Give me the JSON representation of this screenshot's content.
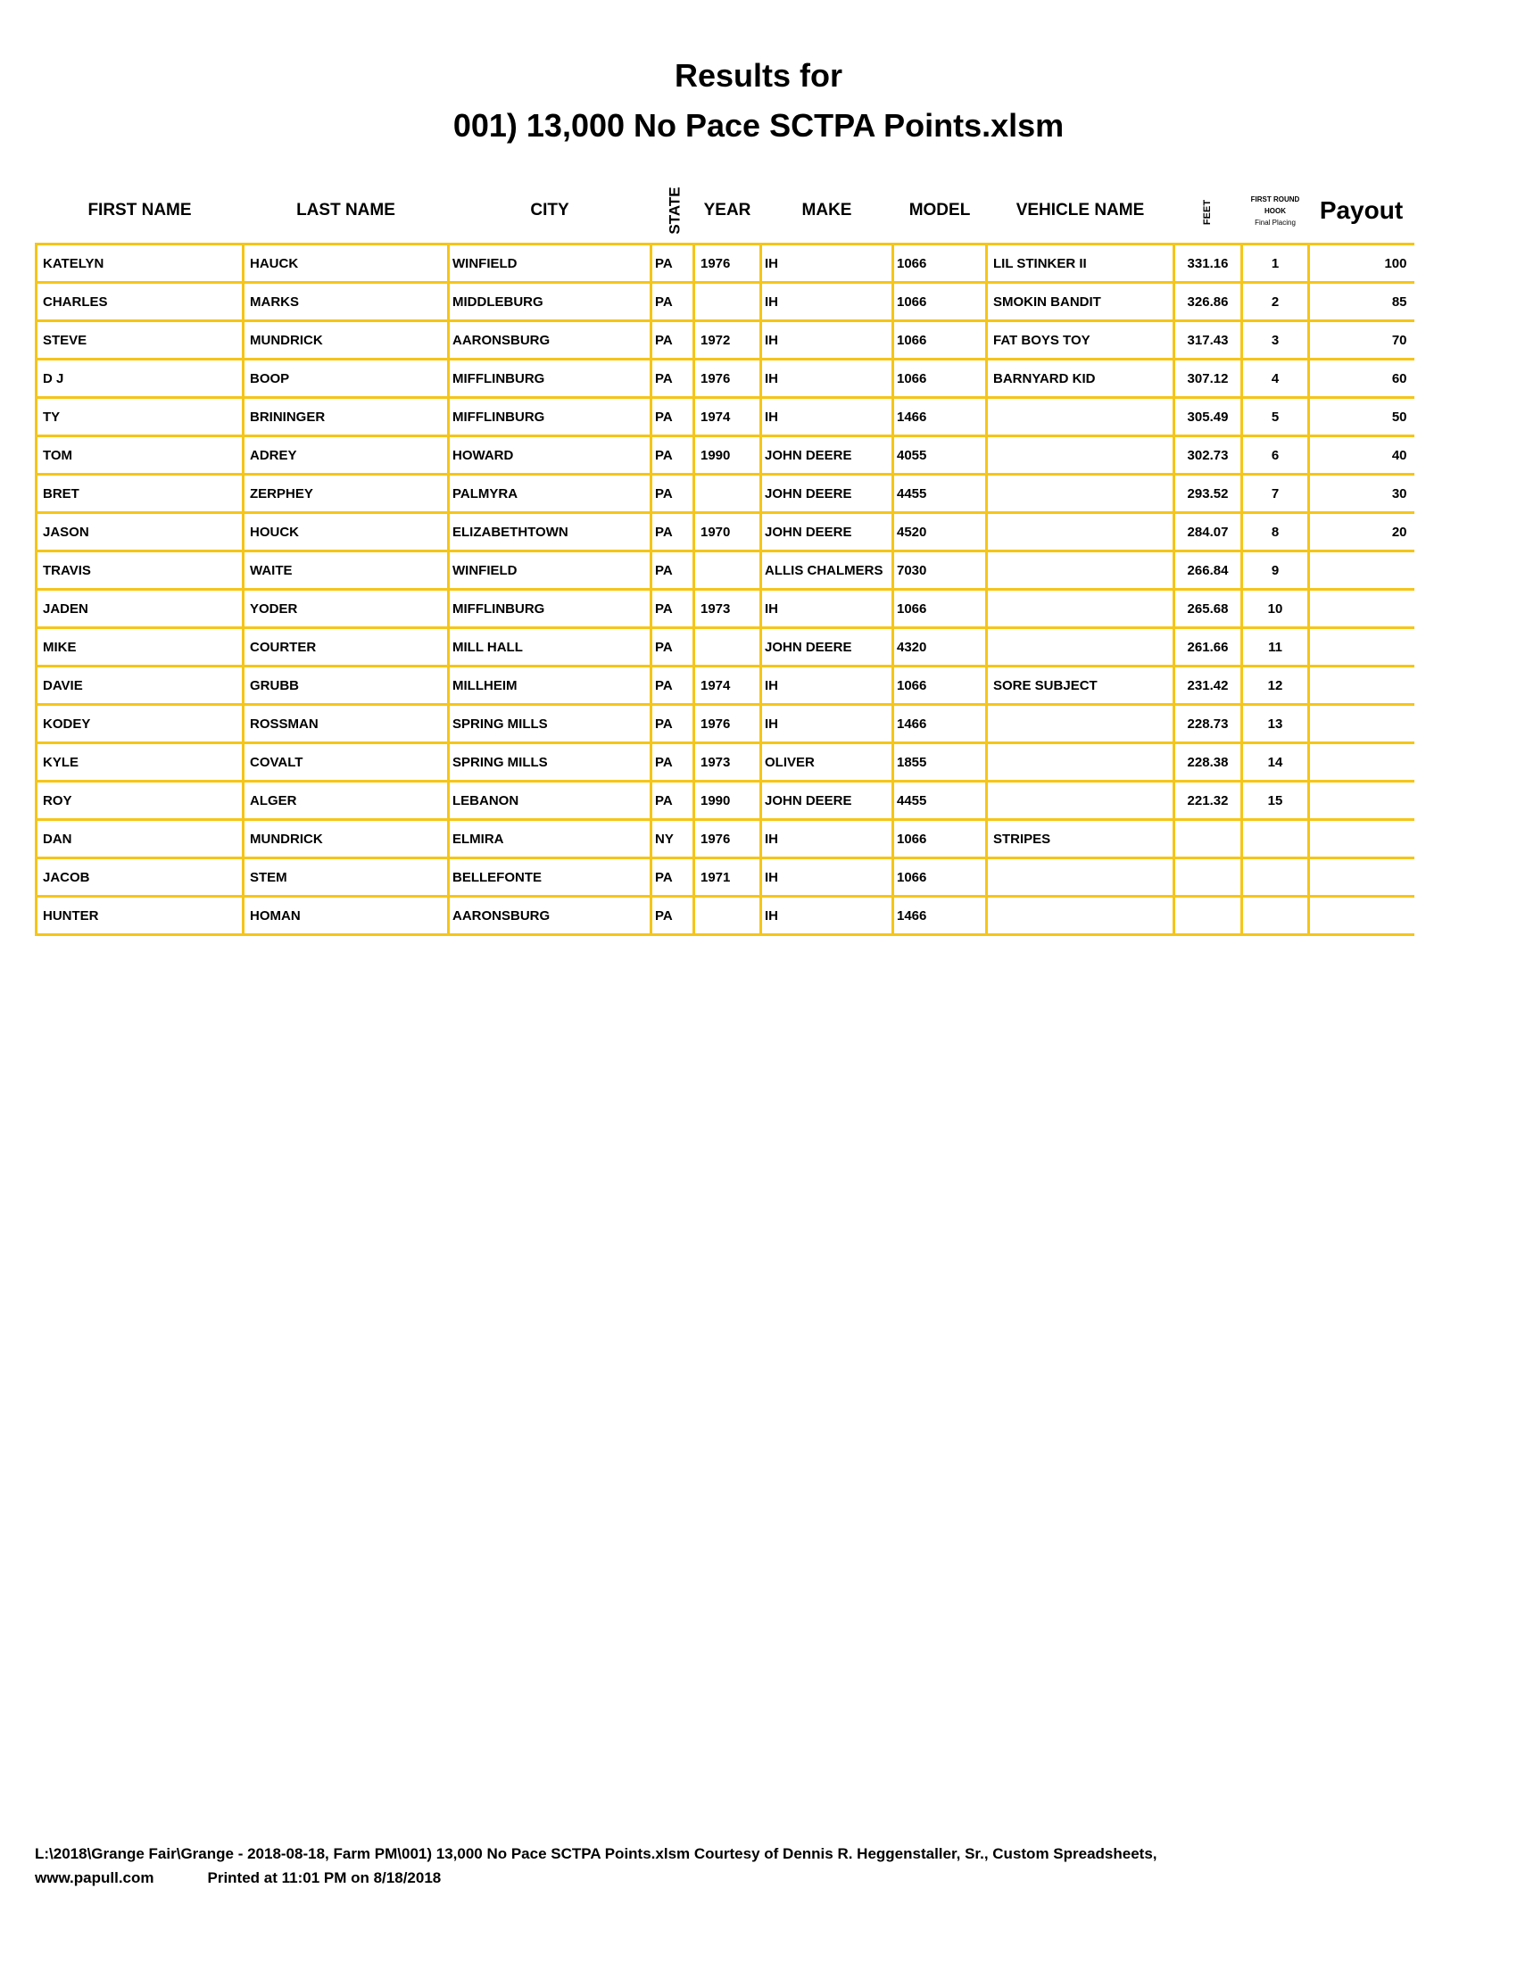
{
  "title_line1": "Results for",
  "title_line2": "001) 13,000 No Pace SCTPA Points.xlsm",
  "border_color": "#f5c518",
  "headers": {
    "first_name": "FIRST NAME",
    "last_name": "LAST NAME",
    "city": "CITY",
    "state": "STATE",
    "year": "YEAR",
    "make": "MAKE",
    "model": "MODEL",
    "vehicle_name": "VEHICLE NAME",
    "feet": "FEET",
    "hook_1": "FIRST ROUND",
    "hook_2": "HOOK",
    "hook_3": "Final Placing",
    "payout": "Payout"
  },
  "rows": [
    [
      "KATELYN",
      "HAUCK",
      "WINFIELD",
      "PA",
      "1976",
      "IH",
      "1066",
      "LIL STINKER II",
      "331.16",
      "1",
      "100"
    ],
    [
      "CHARLES",
      "MARKS",
      "MIDDLEBURG",
      "PA",
      "",
      "IH",
      "1066",
      "SMOKIN BANDIT",
      "326.86",
      "2",
      "85"
    ],
    [
      "STEVE",
      "MUNDRICK",
      "AARONSBURG",
      "PA",
      "1972",
      "IH",
      "1066",
      "FAT BOYS TOY",
      "317.43",
      "3",
      "70"
    ],
    [
      "D J",
      "BOOP",
      "MIFFLINBURG",
      "PA",
      "1976",
      "IH",
      "1066",
      "BARNYARD KID",
      "307.12",
      "4",
      "60"
    ],
    [
      "TY",
      "BRININGER",
      "MIFFLINBURG",
      "PA",
      "1974",
      "IH",
      "1466",
      "",
      "305.49",
      "5",
      "50"
    ],
    [
      "TOM",
      "ADREY",
      "HOWARD",
      "PA",
      "1990",
      "JOHN DEERE",
      "4055",
      "",
      "302.73",
      "6",
      "40"
    ],
    [
      "BRET",
      "ZERPHEY",
      "PALMYRA",
      "PA",
      "",
      "JOHN DEERE",
      "4455",
      "",
      "293.52",
      "7",
      "30"
    ],
    [
      "JASON",
      "HOUCK",
      "ELIZABETHTOWN",
      "PA",
      "1970",
      "JOHN DEERE",
      "4520",
      "",
      "284.07",
      "8",
      "20"
    ],
    [
      "TRAVIS",
      "WAITE",
      "WINFIELD",
      "PA",
      "",
      "ALLIS CHALMERS",
      "7030",
      "",
      "266.84",
      "9",
      ""
    ],
    [
      "JADEN",
      "YODER",
      "MIFFLINBURG",
      "PA",
      "1973",
      "IH",
      "1066",
      "",
      "265.68",
      "10",
      ""
    ],
    [
      "MIKE",
      "COURTER",
      "MILL HALL",
      "PA",
      "",
      "JOHN DEERE",
      "4320",
      "",
      "261.66",
      "11",
      ""
    ],
    [
      "DAVIE",
      "GRUBB",
      "MILLHEIM",
      "PA",
      "1974",
      "IH",
      "1066",
      "SORE SUBJECT",
      "231.42",
      "12",
      ""
    ],
    [
      "KODEY",
      "ROSSMAN",
      "SPRING MILLS",
      "PA",
      "1976",
      "IH",
      "1466",
      "",
      "228.73",
      "13",
      ""
    ],
    [
      "KYLE",
      "COVALT",
      "SPRING MILLS",
      "PA",
      "1973",
      "OLIVER",
      "1855",
      "",
      "228.38",
      "14",
      ""
    ],
    [
      "ROY",
      "ALGER",
      "LEBANON",
      "PA",
      "1990",
      "JOHN DEERE",
      "4455",
      "",
      "221.32",
      "15",
      ""
    ],
    [
      "DAN",
      "MUNDRICK",
      "ELMIRA",
      "NY",
      "1976",
      "IH",
      "1066",
      "STRIPES",
      "",
      "",
      ""
    ],
    [
      "JACOB",
      "STEM",
      "BELLEFONTE",
      "PA",
      "1971",
      "IH",
      "1066",
      "",
      "",
      "",
      ""
    ],
    [
      "HUNTER",
      "HOMAN",
      "AARONSBURG",
      "PA",
      "",
      "IH",
      "1466",
      "",
      "",
      "",
      ""
    ]
  ],
  "footer": {
    "path": "L:\\2018\\Grange Fair\\Grange - 2018-08-18, Farm PM\\001) 13,000 No Pace SCTPA Points.xlsm  Courtesy of Dennis R. Heggenstaller, Sr., Custom Spreadsheets,",
    "website": "www.papull.com",
    "printed": "Printed at 11:01 PM on 8/18/2018"
  }
}
